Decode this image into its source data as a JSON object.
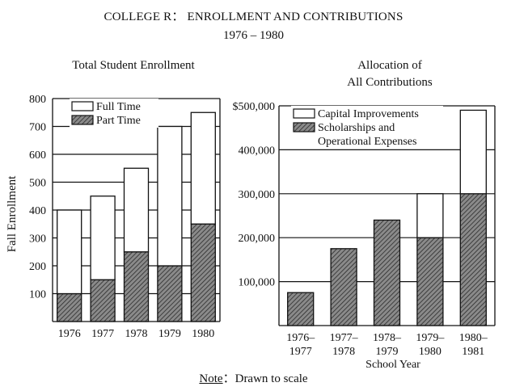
{
  "header": {
    "title": "COLLEGE R： ENROLLMENT AND CONTRIBUTIONS",
    "years": "1976 – 1980"
  },
  "note": {
    "label": "Note",
    "sep": "：",
    "text": "Drawn to scale"
  },
  "colors": {
    "line": "#111111",
    "fill_empty": "#ffffff",
    "hatch_bg": "#8a8a8a",
    "hatch_line": "#2a2a2a"
  },
  "chart_data": [
    {
      "type": "bar",
      "stacked": true,
      "title": "Total Student Enrollment",
      "ylabel": "Fall Enrollment",
      "xlabel": "",
      "categories": [
        "1976",
        "1977",
        "1978",
        "1979",
        "1980"
      ],
      "series": [
        {
          "name": "Part Time",
          "pattern": "hatch",
          "values": [
            100,
            150,
            250,
            200,
            350
          ]
        },
        {
          "name": "Full Time",
          "pattern": "empty",
          "values": [
            300,
            300,
            300,
            500,
            400
          ]
        }
      ],
      "totals": [
        400,
        450,
        550,
        700,
        750
      ],
      "ylim": [
        0,
        800
      ],
      "yticks": [
        "100",
        "200",
        "300",
        "400",
        "500",
        "600",
        "700",
        "800"
      ],
      "grid": true,
      "legend": "top-left"
    },
    {
      "type": "bar",
      "stacked": true,
      "title": "Allocation of All Contributions",
      "title_lines": [
        "Allocation of",
        "All Contributions"
      ],
      "xlabel": "School Year",
      "ylabel": "",
      "categories": [
        [
          "1976–",
          "1977"
        ],
        [
          "1977–",
          "1978"
        ],
        [
          "1978–",
          "1979"
        ],
        [
          "1979–",
          "1980"
        ],
        [
          "1980–",
          "1981"
        ]
      ],
      "series": [
        {
          "name": "Scholarships and Operational Expenses",
          "name_lines": [
            "Scholarships and",
            "Operational Expenses"
          ],
          "pattern": "hatch",
          "values": [
            75000,
            175000,
            240000,
            200000,
            300000
          ]
        },
        {
          "name": "Capital Improvements",
          "name_lines": [
            "Capital Improvements"
          ],
          "pattern": "empty",
          "values": [
            0,
            0,
            0,
            100000,
            190000
          ]
        }
      ],
      "ylim": [
        0,
        500000
      ],
      "yticks": [
        "100,000",
        "200,000",
        "300,000",
        "400,000",
        "$500,000"
      ],
      "grid": true,
      "legend": "top-left"
    }
  ]
}
